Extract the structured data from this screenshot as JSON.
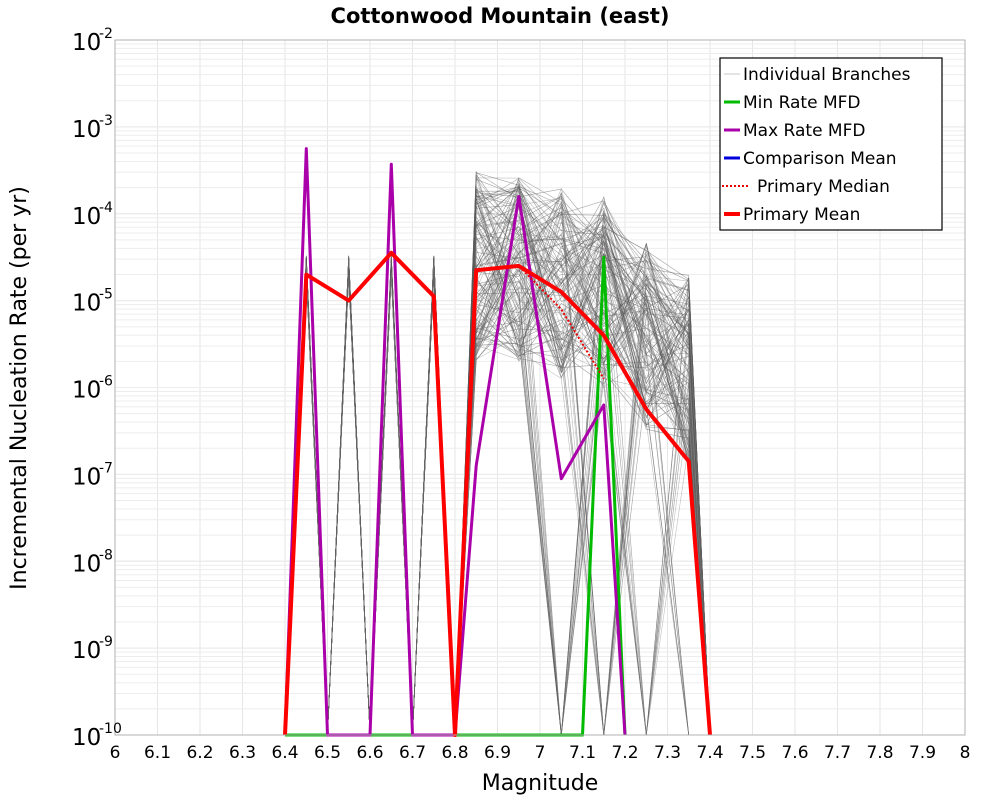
{
  "chart_data": {
    "type": "line",
    "title": "Cottonwood Mountain (east)",
    "xlabel": "Magnitude",
    "ylabel": "Incremental Nucleation Rate (per yr)",
    "xlim": [
      6.0,
      8.0
    ],
    "ylim_log10": [
      -10,
      -2
    ],
    "y_scale": "log",
    "x_ticks": [
      "6",
      "6.1",
      "6.2",
      "6.3",
      "6.4",
      "6.5",
      "6.6",
      "6.7",
      "6.8",
      "6.9",
      "7",
      "7.1",
      "7.2",
      "7.3",
      "7.4",
      "7.5",
      "7.6",
      "7.7",
      "7.8",
      "7.9",
      "8"
    ],
    "y_ticks": [
      {
        "base": "10",
        "exp": "-2"
      },
      {
        "base": "10",
        "exp": "-3"
      },
      {
        "base": "10",
        "exp": "-4"
      },
      {
        "base": "10",
        "exp": "-5"
      },
      {
        "base": "10",
        "exp": "-6"
      },
      {
        "base": "10",
        "exp": "-7"
      },
      {
        "base": "10",
        "exp": "-8"
      },
      {
        "base": "10",
        "exp": "-9"
      },
      {
        "base": "10",
        "exp": "-10"
      }
    ],
    "grid": true,
    "legend_position": "top-right",
    "colors": {
      "individual": "#555555",
      "min_rate": "#00bb00",
      "max_rate": "#aa00aa",
      "comparison": "#0000dd",
      "primary_median": "#ee0000",
      "primary_mean": "#ff0000",
      "grid": "#e6e6e6"
    },
    "series": [
      {
        "name": "Individual Branches",
        "style": "thin-gray",
        "x": [
          6.4,
          6.45,
          6.5,
          6.55,
          6.6,
          6.65,
          6.7,
          6.75,
          6.8,
          6.85,
          6.95,
          7.05,
          7.15,
          7.25,
          7.35,
          7.4
        ],
        "log10_y": [
          -10,
          -4.6,
          -10,
          -4.6,
          -10,
          -4.6,
          -10,
          -4.6,
          -10,
          -4.6,
          -4.6,
          -4.8,
          -4.9,
          -5.4,
          -5.8,
          -10
        ]
      },
      {
        "name": "Min Rate MFD",
        "style": "thick",
        "x": [
          6.4,
          6.45,
          6.5,
          6.55,
          6.6,
          6.65,
          6.7,
          6.75,
          6.8,
          6.85,
          6.95,
          7.05,
          7.1,
          7.15,
          7.2
        ],
        "log10_y": [
          -10,
          -10,
          -10,
          -10,
          -10,
          -10,
          -10,
          -10,
          -10,
          -10,
          -10,
          -10,
          -10,
          -4.5,
          -10
        ]
      },
      {
        "name": "Max Rate MFD",
        "style": "thick",
        "x": [
          6.4,
          6.45,
          6.5,
          6.6,
          6.65,
          6.7,
          6.8,
          6.85,
          6.95,
          7.05,
          7.15,
          7.2
        ],
        "log10_y": [
          -10,
          -3.25,
          -10,
          -10,
          -3.43,
          -10,
          -10,
          -6.9,
          -3.8,
          -7.05,
          -6.2,
          -10
        ]
      },
      {
        "name": "Comparison Mean",
        "style": "thick",
        "x": [],
        "log10_y": []
      },
      {
        "name": "Primary Median",
        "style": "dotted",
        "x": [
          6.85,
          6.95,
          7.05,
          7.15
        ],
        "log10_y": [
          -4.65,
          -4.6,
          -5.1,
          -5.9
        ]
      },
      {
        "name": "Primary Mean",
        "style": "thick",
        "x": [
          6.4,
          6.45,
          6.55,
          6.65,
          6.75,
          6.8,
          6.85,
          6.95,
          7.05,
          7.15,
          7.25,
          7.35,
          7.4
        ],
        "log10_y": [
          -10,
          -4.7,
          -5.0,
          -4.45,
          -4.95,
          -10,
          -4.65,
          -4.6,
          -4.9,
          -5.4,
          -6.25,
          -6.85,
          -10
        ]
      }
    ],
    "legend": [
      {
        "label": "Individual Branches",
        "swatch": "thin"
      },
      {
        "label": "Min Rate MFD",
        "swatch": "solid"
      },
      {
        "label": "Max Rate MFD",
        "swatch": "solid"
      },
      {
        "label": "Comparison Mean",
        "swatch": "solid"
      },
      {
        "label": "Primary Median",
        "swatch": "dotted"
      },
      {
        "label": "Primary Mean",
        "swatch": "thick"
      }
    ]
  }
}
